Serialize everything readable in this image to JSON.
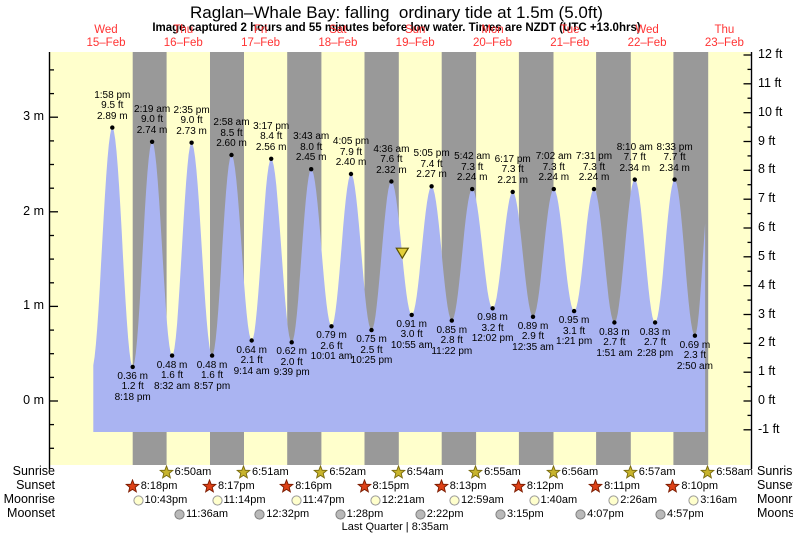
{
  "title": "Raglan–Whale Bay: falling  ordinary tide at 1.5m (5.0ft)",
  "subtitle": "Image captured 2 hours and 55 minutes before low water. Times are NZDT (UTC +13.0hrs)",
  "chart_data": {
    "type": "area",
    "title": "Raglan–Whale Bay: falling  ordinary tide at 1.5m (5.0ft)",
    "subtitle": "Image captured 2 hours and 55 minutes before low water. Times are NZDT (UTC +13.0hrs)",
    "days": [
      {
        "name": "Wed",
        "date": "15–Feb"
      },
      {
        "name": "Thu",
        "date": "16–Feb"
      },
      {
        "name": "Fri",
        "date": "17–Feb"
      },
      {
        "name": "Sat",
        "date": "18–Feb"
      },
      {
        "name": "Sun",
        "date": "19–Feb"
      },
      {
        "name": "Mon",
        "date": "20–Feb"
      },
      {
        "name": "Tue",
        "date": "21–Feb"
      },
      {
        "name": "Wed",
        "date": "22–Feb"
      },
      {
        "name": "Thu",
        "date": "23–Feb"
      }
    ],
    "left_axis": {
      "unit": "m",
      "ticks": [
        {
          "v": 0,
          "label": "0 m"
        },
        {
          "v": 1,
          "label": "1 m"
        },
        {
          "v": 2,
          "label": "2 m"
        },
        {
          "v": 3,
          "label": "3 m"
        }
      ]
    },
    "right_axis": {
      "unit": "ft",
      "ticks": [
        {
          "v": -1,
          "label": "-1 ft"
        },
        {
          "v": 0,
          "label": "0 ft"
        },
        {
          "v": 1,
          "label": "1 ft"
        },
        {
          "v": 2,
          "label": "2 ft"
        },
        {
          "v": 3,
          "label": "3 ft"
        },
        {
          "v": 4,
          "label": "4 ft"
        },
        {
          "v": 5,
          "label": "5 ft"
        },
        {
          "v": 6,
          "label": "6 ft"
        },
        {
          "v": 7,
          "label": "7 ft"
        },
        {
          "v": 8,
          "label": "8 ft"
        },
        {
          "v": 9,
          "label": "9 ft"
        },
        {
          "v": 10,
          "label": "10 ft"
        },
        {
          "v": 11,
          "label": "11 ft"
        },
        {
          "v": 12,
          "label": "12 ft"
        }
      ]
    },
    "tide_events": [
      {
        "kind": "high",
        "time": "1:58 pm",
        "ft": "9.5 ft",
        "m": "2.89 m",
        "t": 1.97,
        "h": 2.89
      },
      {
        "kind": "low",
        "time": "8:18 pm",
        "ft": "1.2 ft",
        "m": "0.36 m",
        "t": 8.3,
        "h": 0.36
      },
      {
        "kind": "high",
        "time": "2:19 am",
        "ft": "9.0 ft",
        "m": "2.74 m",
        "t": 14.32,
        "h": 2.74
      },
      {
        "kind": "low",
        "time": "8:32 am",
        "ft": "1.6 ft",
        "m": "0.48 m",
        "t": 20.53,
        "h": 0.48
      },
      {
        "kind": "high",
        "time": "2:35 pm",
        "ft": "9.0 ft",
        "m": "2.73 m",
        "t": 26.58,
        "h": 2.73
      },
      {
        "kind": "low",
        "time": "8:57 pm",
        "ft": "1.6 ft",
        "m": "0.48 m",
        "t": 32.95,
        "h": 0.48
      },
      {
        "kind": "high",
        "time": "2:58 am",
        "ft": "8.5 ft",
        "m": "2.60 m",
        "t": 38.97,
        "h": 2.6
      },
      {
        "kind": "low",
        "time": "9:14 am",
        "ft": "2.1 ft",
        "m": "0.64 m",
        "t": 45.23,
        "h": 0.64
      },
      {
        "kind": "high",
        "time": "3:17 pm",
        "ft": "8.4 ft",
        "m": "2.56 m",
        "t": 51.28,
        "h": 2.56
      },
      {
        "kind": "low",
        "time": "9:39 pm",
        "ft": "2.0 ft",
        "m": "0.62 m",
        "t": 57.65,
        "h": 0.62
      },
      {
        "kind": "high",
        "time": "3:43 am",
        "ft": "8.0 ft",
        "m": "2.45 m",
        "t": 63.72,
        "h": 2.45
      },
      {
        "kind": "low",
        "time": "10:01 am",
        "ft": "2.6 ft",
        "m": "0.79 m",
        "t": 70.02,
        "h": 0.79
      },
      {
        "kind": "high",
        "time": "4:05 pm",
        "ft": "7.9 ft",
        "m": "2.40 m",
        "t": 76.08,
        "h": 2.4
      },
      {
        "kind": "low",
        "time": "10:25 pm",
        "ft": "2.5 ft",
        "m": "0.75 m",
        "t": 82.42,
        "h": 0.75
      },
      {
        "kind": "high",
        "time": "4:36 am",
        "ft": "7.6 ft",
        "m": "2.32 m",
        "t": 88.6,
        "h": 2.32
      },
      {
        "kind": "low",
        "time": "10:55 am",
        "ft": "3.0 ft",
        "m": "0.91 m",
        "t": 94.92,
        "h": 0.91
      },
      {
        "kind": "high",
        "time": "5:05 pm",
        "ft": "7.4 ft",
        "m": "2.27 m",
        "t": 101.08,
        "h": 2.27
      },
      {
        "kind": "low",
        "time": "11:22 pm",
        "ft": "2.8 ft",
        "m": "0.85 m",
        "t": 107.37,
        "h": 0.85
      },
      {
        "kind": "high",
        "time": "5:42 am",
        "ft": "7.3 ft",
        "m": "2.24 m",
        "t": 113.7,
        "h": 2.24
      },
      {
        "kind": "low",
        "time": "12:02 pm",
        "ft": "3.2 ft",
        "m": "0.98 m",
        "t": 120.03,
        "h": 0.98
      },
      {
        "kind": "high",
        "time": "6:17 pm",
        "ft": "7.3 ft",
        "m": "2.21 m",
        "t": 126.28,
        "h": 2.21
      },
      {
        "kind": "low",
        "time": "12:35 am",
        "ft": "2.9 ft",
        "m": "0.89 m",
        "t": 132.58,
        "h": 0.89
      },
      {
        "kind": "high",
        "time": "7:02 am",
        "ft": "7.3 ft",
        "m": "2.24 m",
        "t": 139.03,
        "h": 2.24
      },
      {
        "kind": "low",
        "time": "1:21 pm",
        "ft": "3.1 ft",
        "m": "0.95 m",
        "t": 145.35,
        "h": 0.95
      },
      {
        "kind": "high",
        "time": "7:31 pm",
        "ft": "7.3 ft",
        "m": "2.24 m",
        "t": 151.52,
        "h": 2.24
      },
      {
        "kind": "low",
        "time": "1:51 am",
        "ft": "2.7 ft",
        "m": "0.83 m",
        "t": 157.85,
        "h": 0.83
      },
      {
        "kind": "high",
        "time": "8:10 am",
        "ft": "7.7 ft",
        "m": "2.34 m",
        "t": 164.17,
        "h": 2.34
      },
      {
        "kind": "low",
        "time": "2:28 pm",
        "ft": "2.7 ft",
        "m": "0.83 m",
        "t": 170.47,
        "h": 0.83
      },
      {
        "kind": "high",
        "time": "8:33 pm",
        "ft": "7.7 ft",
        "m": "2.34 m",
        "t": 176.55,
        "h": 2.34
      },
      {
        "kind": "low",
        "time": "2:50 am",
        "ft": "2.3 ft",
        "m": "0.69 m",
        "t": 182.83,
        "h": 0.69
      }
    ],
    "night_bands": [
      [
        8.3,
        18.83
      ],
      [
        32.28,
        42.85
      ],
      [
        56.27,
        66.87
      ],
      [
        80.25,
        90.9
      ],
      [
        104.22,
        114.92
      ],
      [
        128.2,
        138.93
      ],
      [
        152.18,
        162.95
      ],
      [
        176.17,
        186.97
      ]
    ],
    "current_marker": {
      "t": 92.0,
      "h": 1.52
    },
    "sun_moon": {
      "rows": [
        {
          "id": "sunrise",
          "label": "Sunrise",
          "icon": "sunrise-star",
          "items": [
            {
              "time": "6:50am",
              "t": 18.83
            },
            {
              "time": "6:51am",
              "t": 42.85
            },
            {
              "time": "6:52am",
              "t": 66.87
            },
            {
              "time": "6:54am",
              "t": 90.9
            },
            {
              "time": "6:55am",
              "t": 114.92
            },
            {
              "time": "6:56am",
              "t": 138.93
            },
            {
              "time": "6:57am",
              "t": 162.95
            },
            {
              "time": "6:58am",
              "t": 186.97
            }
          ]
        },
        {
          "id": "sunset",
          "label": "Sunset",
          "icon": "sunset-star",
          "items": [
            {
              "time": "8:18pm",
              "t": 8.3
            },
            {
              "time": "8:17pm",
              "t": 32.28
            },
            {
              "time": "8:16pm",
              "t": 56.27
            },
            {
              "time": "8:15pm",
              "t": 80.25
            },
            {
              "time": "8:13pm",
              "t": 104.22
            },
            {
              "time": "8:12pm",
              "t": 128.2
            },
            {
              "time": "8:11pm",
              "t": 152.18
            },
            {
              "time": "8:10pm",
              "t": 176.17
            }
          ]
        },
        {
          "id": "moonrise",
          "label": "Moonrise",
          "icon": "moonrise-circle",
          "items": [
            {
              "time": "10:43pm",
              "t": 10.72
            },
            {
              "time": "11:14pm",
              "t": 35.23
            },
            {
              "time": "11:47pm",
              "t": 59.78
            },
            {
              "time": "12:21am",
              "t": 84.35
            },
            {
              "time": "12:59am",
              "t": 108.98
            },
            {
              "time": "1:40am",
              "t": 133.67
            },
            {
              "time": "2:26am",
              "t": 158.43
            },
            {
              "time": "3:16am",
              "t": 183.27
            }
          ]
        },
        {
          "id": "moonset",
          "label": "Moonset",
          "icon": "moonset-circle",
          "items": [
            {
              "time": "11:36am",
              "t": 23.6
            },
            {
              "time": "12:32pm",
              "t": 48.53
            },
            {
              "time": "1:28pm",
              "t": 73.47
            },
            {
              "time": "2:22pm",
              "t": 98.37
            },
            {
              "time": "3:15pm",
              "t": 123.25
            },
            {
              "time": "4:07pm",
              "t": 148.12
            },
            {
              "time": "4:57pm",
              "t": 172.95
            }
          ]
        }
      ],
      "footer": "Last Quarter | 8:35am"
    },
    "colors": {
      "plot_bg": "#ffffcc",
      "night_band": "#999999",
      "tide_fill": "#aab4f2",
      "day_label_red": "#ff3333",
      "axis_black": "#000000",
      "sunrise_star_fill": "#c8b42c",
      "sunrise_star_stroke": "#7a6c10",
      "sunset_star_fill": "#dd4016",
      "sunset_star_stroke": "#7c1c00",
      "moonrise_fill": "#ffffcc",
      "moonrise_stroke": "#999999",
      "moonset_fill": "#b9b9b9",
      "moonset_stroke": "#808080",
      "marker_fill": "#e2cf3a",
      "marker_stroke": "#5c5200"
    }
  }
}
